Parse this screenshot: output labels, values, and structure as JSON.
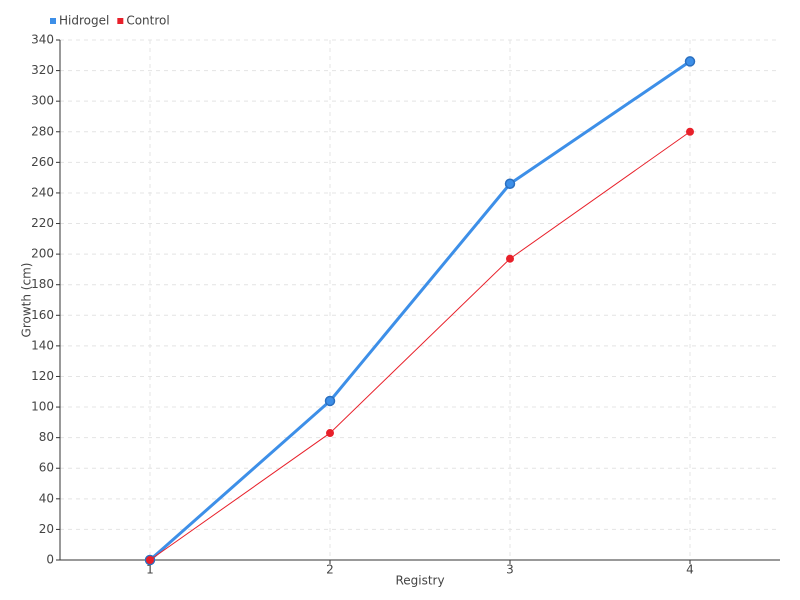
{
  "chart_data": {
    "type": "line",
    "x_label": "Registry",
    "y_label": "Growth (cm)",
    "categories": [
      "1",
      "2",
      "3",
      "4"
    ],
    "series": [
      {
        "name": "Hidrogel",
        "color": "#3d8fe8",
        "values": [
          0,
          104,
          246,
          326
        ]
      },
      {
        "name": "Control",
        "color": "#e8202a",
        "values": [
          0,
          83,
          197,
          280
        ]
      }
    ],
    "ylim": [
      0,
      340
    ],
    "yticks": [
      0,
      20,
      40,
      60,
      80,
      100,
      120,
      140,
      160,
      180,
      200,
      220,
      240,
      260,
      280,
      300,
      320,
      340
    ],
    "grid": true,
    "legend": "top-left"
  }
}
